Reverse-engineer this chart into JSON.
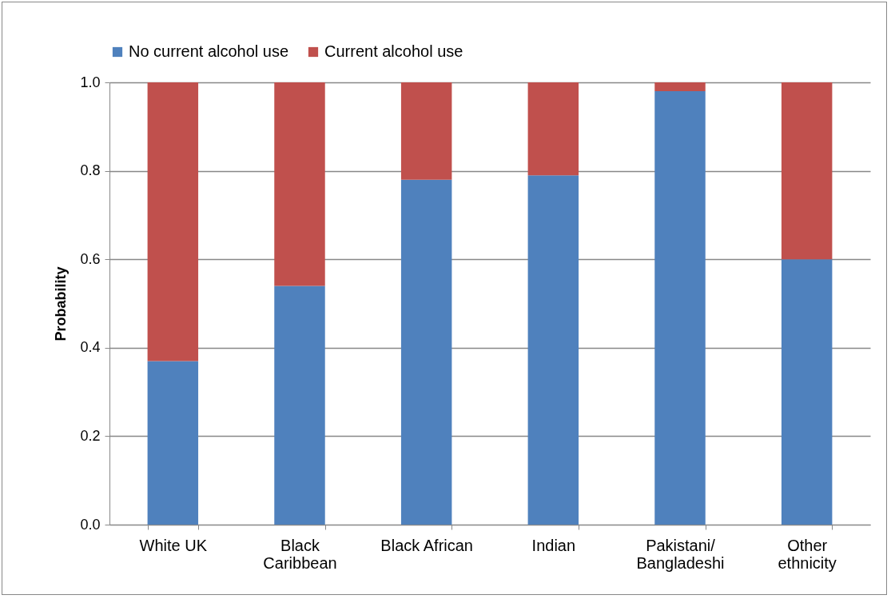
{
  "chart_data": {
    "type": "bar",
    "stacked": true,
    "ylabel": "Probability",
    "categories": [
      "White UK",
      "Black Caribbean",
      "Black African",
      "Indian",
      "Pakistani/ Bangladeshi",
      "Other ethnicity"
    ],
    "series": [
      {
        "name": "No current alcohol use",
        "color": "#4f81bd",
        "values": [
          0.37,
          0.54,
          0.78,
          0.79,
          0.98,
          0.6
        ]
      },
      {
        "name": "Current alcohol use",
        "color": "#c0504d",
        "values": [
          0.63,
          0.46,
          0.22,
          0.21,
          0.02,
          0.4
        ]
      }
    ],
    "ylim": [
      0,
      1
    ],
    "yticks": [
      {
        "value": 0,
        "label": "0.0"
      },
      {
        "value": 0.2,
        "label": "0.2"
      },
      {
        "value": 0.4,
        "label": "0.4"
      },
      {
        "value": 0.6,
        "label": "0.6"
      },
      {
        "value": 0.8,
        "label": "0.8"
      },
      {
        "value": 1,
        "label": "1.0"
      }
    ],
    "grid": "y",
    "legend": "top"
  }
}
